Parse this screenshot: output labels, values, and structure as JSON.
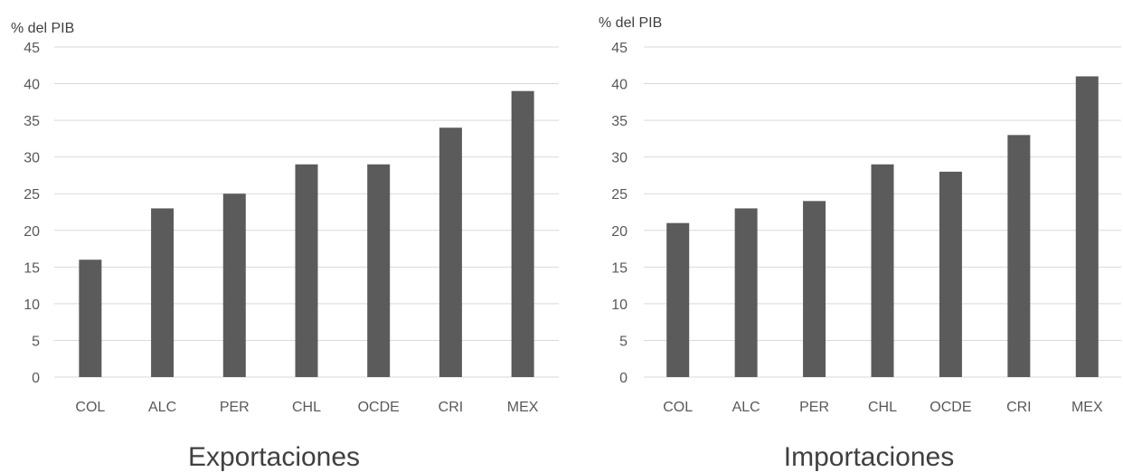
{
  "chart_data": [
    {
      "type": "bar",
      "title": "Exportaciones",
      "ylabel": "% del PIB",
      "xlabel": "",
      "categories": [
        "COL",
        "ALC",
        "PER",
        "CHL",
        "OCDE",
        "CRI",
        "MEX"
      ],
      "values": [
        16,
        23,
        25,
        29,
        29,
        34,
        39
      ],
      "ylim": [
        0,
        45
      ],
      "yticks": [
        "0",
        "5",
        "10",
        "15",
        "20",
        "25",
        "30",
        "35",
        "40",
        "45"
      ],
      "grid": true,
      "bar_color": "#5b5b5b"
    },
    {
      "type": "bar",
      "title": "Importaciones",
      "ylabel": "% del PIB",
      "xlabel": "",
      "categories": [
        "COL",
        "ALC",
        "PER",
        "CHL",
        "OCDE",
        "CRI",
        "MEX"
      ],
      "values": [
        21,
        23,
        24,
        29,
        28,
        33,
        41
      ],
      "ylim": [
        0,
        45
      ],
      "yticks": [
        "0",
        "5",
        "10",
        "15",
        "20",
        "25",
        "30",
        "35",
        "40",
        "45"
      ],
      "grid": true,
      "bar_color": "#5b5b5b"
    }
  ]
}
